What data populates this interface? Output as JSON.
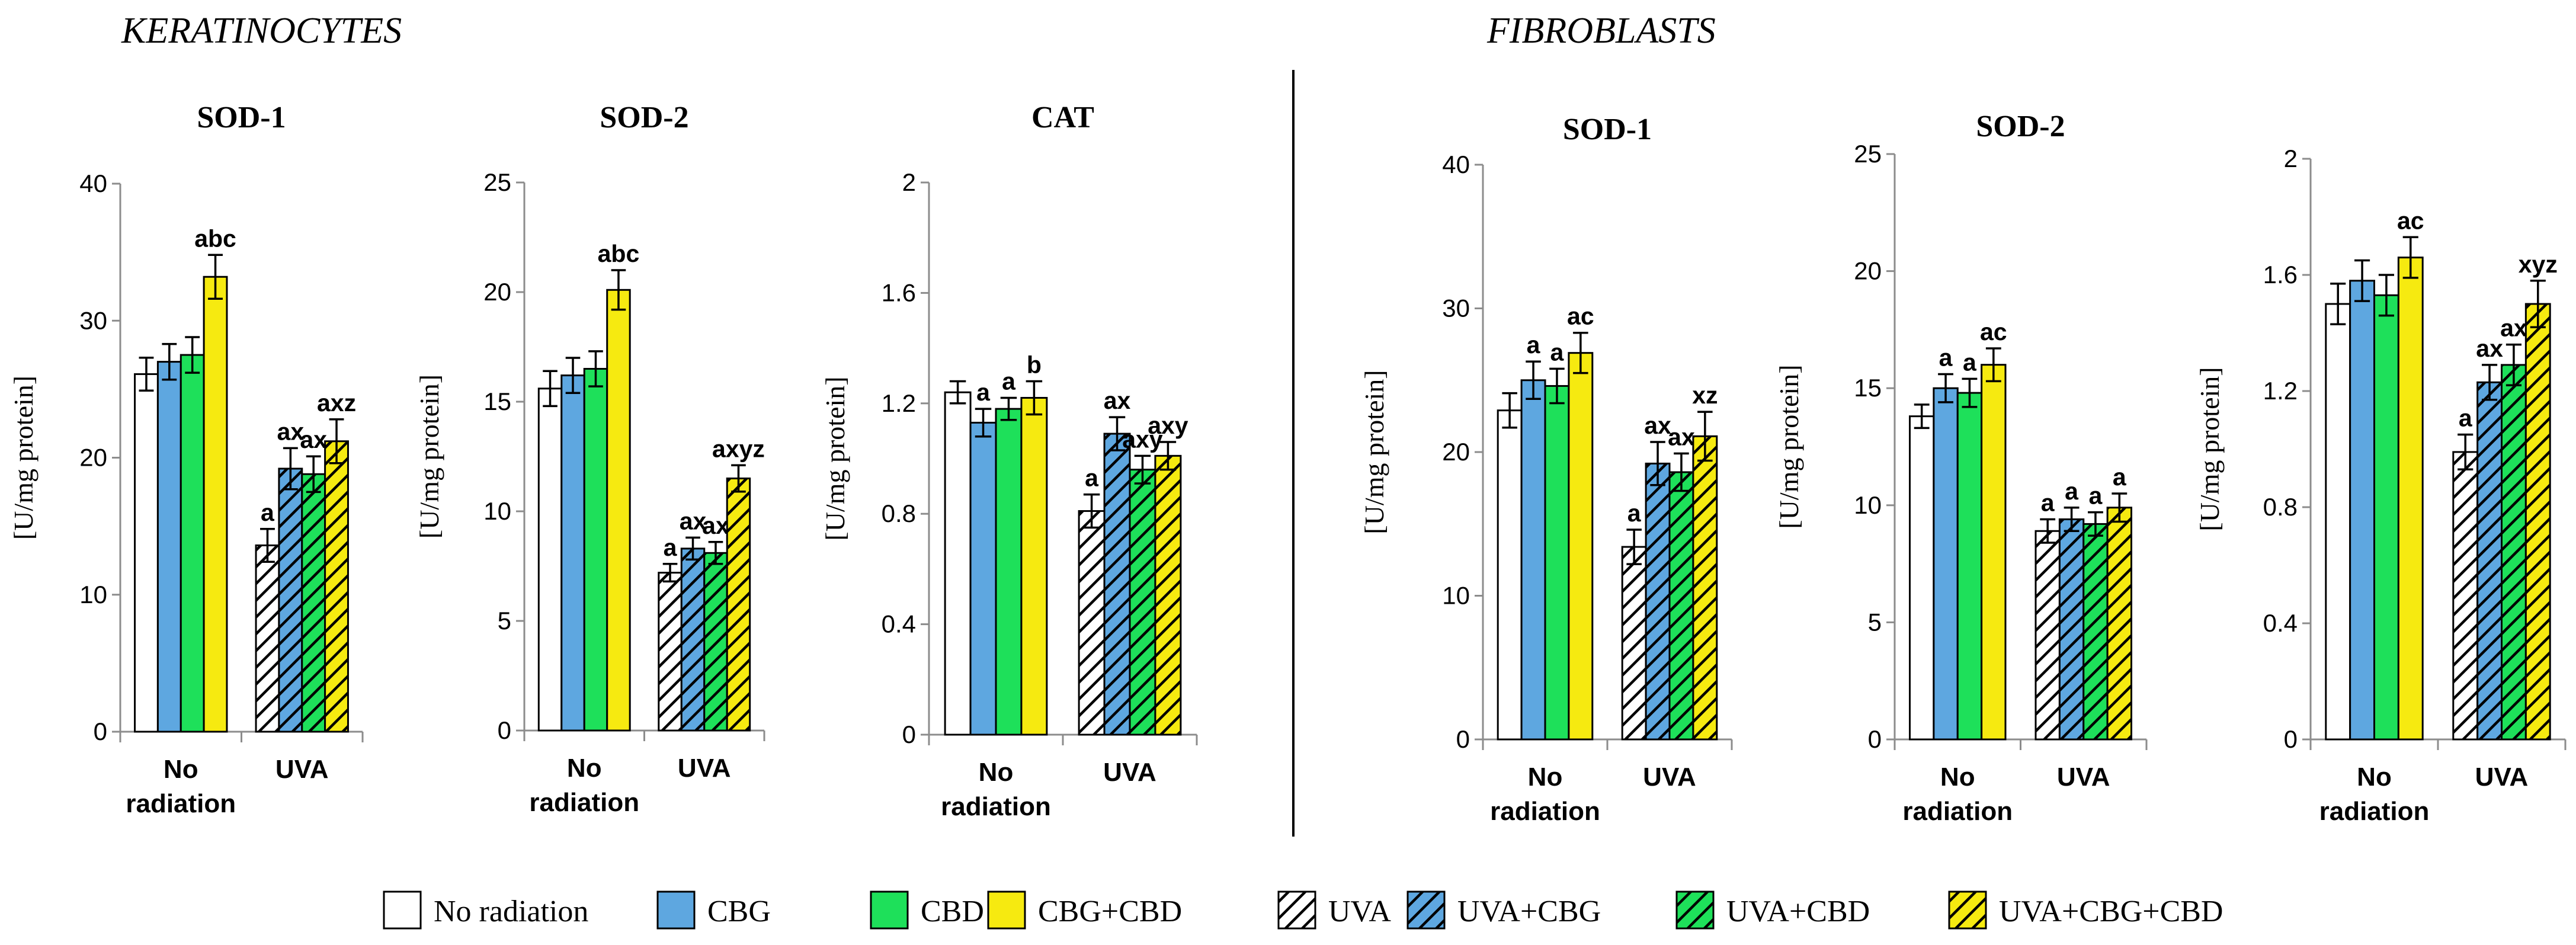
{
  "colors": {
    "no_radiation": "#ffffff",
    "cbg": "#5ea7e0",
    "cbd": "#1ee05a",
    "cbg_cbd": "#f6ea10",
    "hatch": "#000000"
  },
  "sections": [
    {
      "id": "keratinocytes",
      "title": "KERATINOCYTES"
    },
    {
      "id": "fibroblasts",
      "title": "FIBROBLASTS"
    }
  ],
  "legend": [
    {
      "label": "No radiation",
      "fill": "no_radiation",
      "hatched": false
    },
    {
      "label": "CBG",
      "fill": "cbg",
      "hatched": false
    },
    {
      "label": "CBD",
      "fill": "cbd",
      "hatched": false
    },
    {
      "label": "CBG+CBD",
      "fill": "cbg_cbd",
      "hatched": false
    },
    {
      "label": "UVA",
      "fill": "no_radiation",
      "hatched": true
    },
    {
      "label": "UVA+CBG",
      "fill": "cbg",
      "hatched": true
    },
    {
      "label": "UVA+CBD",
      "fill": "cbd",
      "hatched": true
    },
    {
      "label": "UVA+CBG+CBD",
      "fill": "cbg_cbd",
      "hatched": true
    }
  ],
  "chart_data": [
    {
      "type": "bar",
      "section": "KERATINOCYTES",
      "title": "SOD-1",
      "ylabel": "[U/mg protein]",
      "ylim": [
        0,
        40
      ],
      "yticks": [
        "0",
        "10",
        "20",
        "30",
        "40"
      ],
      "categories": [
        "No\nradiation",
        "UVA"
      ],
      "series": [
        {
          "name": "No radiation",
          "values": [
            26.1,
            null
          ],
          "errors": [
            1.2,
            null
          ],
          "labels": [
            "",
            ""
          ]
        },
        {
          "name": "CBG",
          "values": [
            27.0,
            null
          ],
          "errors": [
            1.3,
            null
          ],
          "labels": [
            "",
            ""
          ]
        },
        {
          "name": "CBD",
          "values": [
            27.5,
            null
          ],
          "errors": [
            1.3,
            null
          ],
          "labels": [
            "",
            ""
          ]
        },
        {
          "name": "CBG+CBD",
          "values": [
            33.2,
            null
          ],
          "errors": [
            1.6,
            null
          ],
          "labels": [
            "abc",
            ""
          ]
        },
        {
          "name": "UVA",
          "values": [
            null,
            13.6
          ],
          "errors": [
            null,
            1.2
          ],
          "labels": [
            "",
            "a"
          ]
        },
        {
          "name": "UVA+CBG",
          "values": [
            null,
            19.2
          ],
          "errors": [
            null,
            1.5
          ],
          "labels": [
            "",
            "ax"
          ]
        },
        {
          "name": "UVA+CBD",
          "values": [
            null,
            18.8
          ],
          "errors": [
            null,
            1.3
          ],
          "labels": [
            "",
            "ax"
          ]
        },
        {
          "name": "UVA+CBG+CBD",
          "values": [
            null,
            21.2
          ],
          "errors": [
            null,
            1.6
          ],
          "labels": [
            "",
            "axz"
          ]
        }
      ]
    },
    {
      "type": "bar",
      "section": "KERATINOCYTES",
      "title": "SOD-2",
      "ylabel": "[U/mg protein]",
      "ylim": [
        0,
        25
      ],
      "yticks": [
        "0",
        "5",
        "10",
        "15",
        "20",
        "25"
      ],
      "categories": [
        "No\nradiation",
        "UVA"
      ],
      "series": [
        {
          "name": "No radiation",
          "values": [
            15.6,
            null
          ],
          "errors": [
            0.8,
            null
          ],
          "labels": [
            "",
            ""
          ]
        },
        {
          "name": "CBG",
          "values": [
            16.2,
            null
          ],
          "errors": [
            0.8,
            null
          ],
          "labels": [
            "",
            ""
          ]
        },
        {
          "name": "CBD",
          "values": [
            16.5,
            null
          ],
          "errors": [
            0.8,
            null
          ],
          "labels": [
            "",
            ""
          ]
        },
        {
          "name": "CBG+CBD",
          "values": [
            20.1,
            null
          ],
          "errors": [
            0.9,
            null
          ],
          "labels": [
            "abc",
            ""
          ]
        },
        {
          "name": "UVA",
          "values": [
            null,
            7.2
          ],
          "errors": [
            null,
            0.4
          ],
          "labels": [
            "",
            "a"
          ]
        },
        {
          "name": "UVA+CBG",
          "values": [
            null,
            8.3
          ],
          "errors": [
            null,
            0.5
          ],
          "labels": [
            "",
            "ax"
          ]
        },
        {
          "name": "UVA+CBD",
          "values": [
            null,
            8.1
          ],
          "errors": [
            null,
            0.5
          ],
          "labels": [
            "",
            "ax"
          ]
        },
        {
          "name": "UVA+CBG+CBD",
          "values": [
            null,
            11.5
          ],
          "errors": [
            null,
            0.6
          ],
          "labels": [
            "",
            "axyz"
          ]
        }
      ]
    },
    {
      "type": "bar",
      "section": "KERATINOCYTES",
      "title": "CAT",
      "ylabel": "[U/mg protein]",
      "ylim": [
        0,
        2
      ],
      "yticks": [
        "0",
        "0.4",
        "0.8",
        "1.2",
        "1.6",
        "2"
      ],
      "categories": [
        "No\nradiation",
        "UVA"
      ],
      "series": [
        {
          "name": "No radiation",
          "values": [
            1.24,
            null
          ],
          "errors": [
            0.04,
            null
          ],
          "labels": [
            "",
            ""
          ]
        },
        {
          "name": "CBG",
          "values": [
            1.13,
            null
          ],
          "errors": [
            0.05,
            null
          ],
          "labels": [
            "a",
            ""
          ]
        },
        {
          "name": "CBD",
          "values": [
            1.18,
            null
          ],
          "errors": [
            0.04,
            null
          ],
          "labels": [
            "a",
            ""
          ]
        },
        {
          "name": "CBG+CBD",
          "values": [
            1.22,
            null
          ],
          "errors": [
            0.06,
            null
          ],
          "labels": [
            "b",
            ""
          ]
        },
        {
          "name": "UVA",
          "values": [
            null,
            0.81
          ],
          "errors": [
            null,
            0.06
          ],
          "labels": [
            "",
            "a"
          ]
        },
        {
          "name": "UVA+CBG",
          "values": [
            null,
            1.09
          ],
          "errors": [
            null,
            0.06
          ],
          "labels": [
            "",
            "ax"
          ]
        },
        {
          "name": "UVA+CBD",
          "values": [
            null,
            0.96
          ],
          "errors": [
            null,
            0.05
          ],
          "labels": [
            "",
            "axy"
          ]
        },
        {
          "name": "UVA+CBG+CBD",
          "values": [
            null,
            1.01
          ],
          "errors": [
            null,
            0.05
          ],
          "labels": [
            "",
            "axy"
          ]
        }
      ]
    },
    {
      "type": "bar",
      "section": "FIBROBLASTS",
      "title": "SOD-1",
      "ylabel": "[U/mg protein]",
      "ylim": [
        0,
        40
      ],
      "yticks": [
        "0",
        "10",
        "20",
        "30",
        "40"
      ],
      "categories": [
        "No\nradiation",
        "UVA"
      ],
      "series": [
        {
          "name": "No radiation",
          "values": [
            22.9,
            null
          ],
          "errors": [
            1.2,
            null
          ],
          "labels": [
            "",
            ""
          ]
        },
        {
          "name": "CBG",
          "values": [
            25.0,
            null
          ],
          "errors": [
            1.3,
            null
          ],
          "labels": [
            "a",
            ""
          ]
        },
        {
          "name": "CBD",
          "values": [
            24.6,
            null
          ],
          "errors": [
            1.2,
            null
          ],
          "labels": [
            "a",
            ""
          ]
        },
        {
          "name": "CBG+CBD",
          "values": [
            26.9,
            null
          ],
          "errors": [
            1.4,
            null
          ],
          "labels": [
            "ac",
            ""
          ]
        },
        {
          "name": "UVA",
          "values": [
            null,
            13.4
          ],
          "errors": [
            null,
            1.2
          ],
          "labels": [
            "",
            "a"
          ]
        },
        {
          "name": "UVA+CBG",
          "values": [
            null,
            19.2
          ],
          "errors": [
            null,
            1.5
          ],
          "labels": [
            "",
            "ax"
          ]
        },
        {
          "name": "UVA+CBD",
          "values": [
            null,
            18.6
          ],
          "errors": [
            null,
            1.3
          ],
          "labels": [
            "",
            "ax"
          ]
        },
        {
          "name": "UVA+CBG+CBD",
          "values": [
            null,
            21.1
          ],
          "errors": [
            null,
            1.7
          ],
          "labels": [
            "",
            "xz"
          ]
        }
      ]
    },
    {
      "type": "bar",
      "section": "FIBROBLASTS",
      "title": "SOD-2",
      "ylabel": "[U/mg protein]",
      "ylim": [
        0,
        25
      ],
      "yticks": [
        "0",
        "5",
        "10",
        "15",
        "20",
        "25"
      ],
      "categories": [
        "No\nradiation",
        "UVA"
      ],
      "series": [
        {
          "name": "No radiation",
          "values": [
            13.8,
            null
          ],
          "errors": [
            0.5,
            null
          ],
          "labels": [
            "",
            ""
          ]
        },
        {
          "name": "CBG",
          "values": [
            15.0,
            null
          ],
          "errors": [
            0.6,
            null
          ],
          "labels": [
            "a",
            ""
          ]
        },
        {
          "name": "CBD",
          "values": [
            14.8,
            null
          ],
          "errors": [
            0.6,
            null
          ],
          "labels": [
            "a",
            ""
          ]
        },
        {
          "name": "CBG+CBD",
          "values": [
            16.0,
            null
          ],
          "errors": [
            0.7,
            null
          ],
          "labels": [
            "ac",
            ""
          ]
        },
        {
          "name": "UVA",
          "values": [
            null,
            8.9
          ],
          "errors": [
            null,
            0.5
          ],
          "labels": [
            "",
            "a"
          ]
        },
        {
          "name": "UVA+CBG",
          "values": [
            null,
            9.4
          ],
          "errors": [
            null,
            0.5
          ],
          "labels": [
            "",
            "a"
          ]
        },
        {
          "name": "UVA+CBD",
          "values": [
            null,
            9.2
          ],
          "errors": [
            null,
            0.5
          ],
          "labels": [
            "",
            "a"
          ]
        },
        {
          "name": "UVA+CBG+CBD",
          "values": [
            null,
            9.9
          ],
          "errors": [
            null,
            0.6
          ],
          "labels": [
            "",
            "a"
          ]
        }
      ]
    },
    {
      "type": "bar",
      "section": "FIBROBLASTS",
      "title": "",
      "ylabel": "[U/mg protein]",
      "ylim": [
        0,
        2
      ],
      "yticks": [
        "0",
        "0.4",
        "0.8",
        "1.2",
        "1.6",
        "2"
      ],
      "categories": [
        "No\nradiation",
        "UVA"
      ],
      "series": [
        {
          "name": "No radiation",
          "values": [
            1.5,
            null
          ],
          "errors": [
            0.07,
            null
          ],
          "labels": [
            "",
            ""
          ]
        },
        {
          "name": "CBG",
          "values": [
            1.58,
            null
          ],
          "errors": [
            0.07,
            null
          ],
          "labels": [
            "",
            ""
          ]
        },
        {
          "name": "CBD",
          "values": [
            1.53,
            null
          ],
          "errors": [
            0.07,
            null
          ],
          "labels": [
            "",
            ""
          ]
        },
        {
          "name": "CBG+CBD",
          "values": [
            1.66,
            null
          ],
          "errors": [
            0.07,
            null
          ],
          "labels": [
            "ac",
            ""
          ]
        },
        {
          "name": "UVA",
          "values": [
            null,
            0.99
          ],
          "errors": [
            null,
            0.06
          ],
          "labels": [
            "",
            "a"
          ]
        },
        {
          "name": "UVA+CBG",
          "values": [
            null,
            1.23
          ],
          "errors": [
            null,
            0.06
          ],
          "labels": [
            "",
            "ax"
          ]
        },
        {
          "name": "UVA+CBD",
          "values": [
            null,
            1.29
          ],
          "errors": [
            null,
            0.07
          ],
          "labels": [
            "",
            "ax"
          ]
        },
        {
          "name": "UVA+CBG+CBD",
          "values": [
            null,
            1.5
          ],
          "errors": [
            null,
            0.08
          ],
          "labels": [
            "",
            "xyz"
          ]
        }
      ]
    }
  ]
}
